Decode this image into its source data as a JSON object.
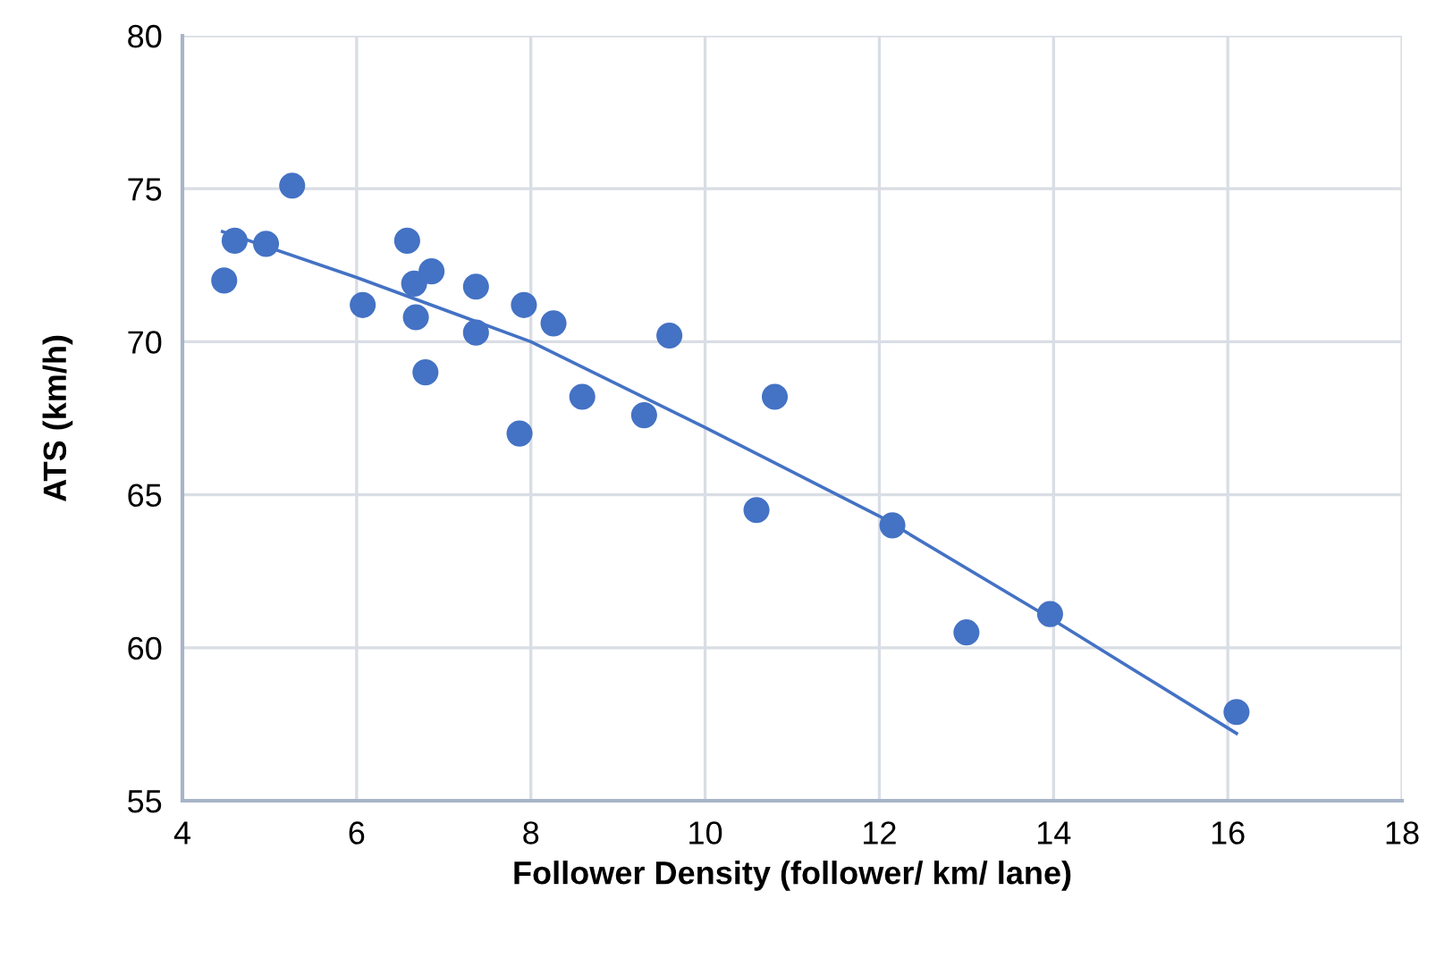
{
  "chart_data": {
    "type": "scatter",
    "xlabel": "Follower Density (follower/ km/ lane)",
    "ylabel": "ATS (km/h)",
    "xlim": [
      4,
      18
    ],
    "xticks": [
      4,
      6,
      8,
      10,
      12,
      14,
      16,
      18
    ],
    "ylim": [
      55,
      80
    ],
    "yticks": [
      55,
      60,
      65,
      70,
      75,
      80
    ],
    "grid": true,
    "legend": false,
    "series": [
      {
        "color": "#4472c4",
        "marker": "circle",
        "x": [
          4.48,
          4.6,
          4.96,
          5.26,
          6.07,
          6.58,
          6.66,
          6.86,
          6.68,
          6.79,
          7.37,
          7.37,
          7.92,
          7.87,
          8.26,
          8.59,
          9.3,
          9.59,
          10.8,
          10.59,
          12.15,
          13.0,
          13.96,
          16.1
        ],
        "values": [
          72.0,
          73.3,
          73.2,
          75.1,
          71.2,
          73.3,
          71.9,
          72.3,
          70.8,
          69.0,
          71.8,
          70.3,
          71.2,
          67.0,
          70.6,
          68.2,
          67.6,
          70.2,
          68.2,
          64.5,
          64.0,
          60.5,
          61.1,
          57.9
        ]
      },
      {
        "type": "line",
        "color": "#4472c4",
        "marker": "none",
        "line_style": "solid",
        "x": [
          4.46,
          6,
          8,
          10,
          12,
          14,
          16.1
        ],
        "values": [
          73.6,
          72.1,
          70.0,
          67.2,
          64.3,
          60.9,
          57.2
        ]
      }
    ]
  }
}
